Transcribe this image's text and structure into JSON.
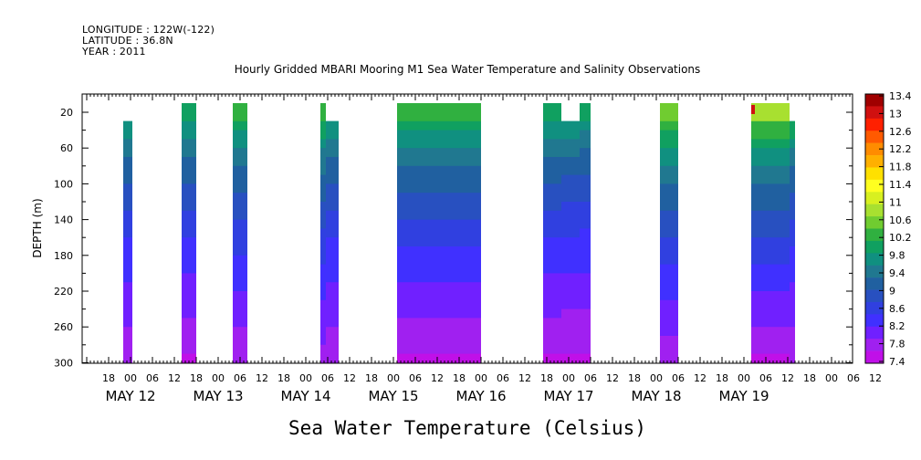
{
  "header": {
    "longitude": "LONGITUDE : 122W(-122)",
    "latitude": "LATITUDE : 36.8N",
    "year": "YEAR : 2011"
  },
  "chart_data": {
    "type": "heatmap",
    "title": "Hourly Gridded MBARI Mooring M1 Sea Water Temperature and Salinity Observations",
    "xlabel": "Sea Water Temperature (Celsius)",
    "ylabel": "DEPTH (m)",
    "x_unit": "hours since 2011-05-11 12:00",
    "xlim": [
      0,
      204
    ],
    "ylim": [
      300,
      0
    ],
    "y_ticks": [
      20,
      60,
      100,
      140,
      180,
      220,
      260,
      300
    ],
    "x_hour_ticks": [
      "18",
      "00",
      "06",
      "12",
      "18",
      "00",
      "06",
      "12",
      "18",
      "00",
      "06",
      "12",
      "18",
      "00",
      "06",
      "12",
      "18",
      "00",
      "06",
      "12",
      "18",
      "00",
      "06",
      "12",
      "18",
      "00",
      "06",
      "12",
      "18",
      "00",
      "06",
      "12",
      "18",
      "00",
      "06",
      "12"
    ],
    "x_day_labels": [
      {
        "label": "MAY 12",
        "hour": 12
      },
      {
        "label": "MAY 13",
        "hour": 36
      },
      {
        "label": "MAY 14",
        "hour": 60
      },
      {
        "label": "MAY 15",
        "hour": 84
      },
      {
        "label": "MAY 16",
        "hour": 108
      },
      {
        "label": "MAY 17",
        "hour": 132
      },
      {
        "label": "MAY 18",
        "hour": 156
      },
      {
        "label": "MAY 19",
        "hour": 180
      }
    ],
    "colorbar": {
      "labels": [
        "13.4",
        "13",
        "12.6",
        "12.2",
        "11.8",
        "11.4",
        "11",
        "10.6",
        "10.2",
        "9.8",
        "9.4",
        "9",
        "8.6",
        "8.2",
        "7.8",
        "7.4"
      ],
      "colors": [
        "#a00000",
        "#d01010",
        "#ff2000",
        "#ff5a00",
        "#ff8c00",
        "#ffb000",
        "#ffe000",
        "#ffff20",
        "#d8f020",
        "#a8e030",
        "#70cc30",
        "#30b040",
        "#10a060",
        "#109080",
        "#207890",
        "#2060a0",
        "#2850c0",
        "#3040e0",
        "#4030ff",
        "#7020ff",
        "#a020f0",
        "#c010e8"
      ],
      "min": 7.4,
      "max": 13.4
    },
    "data_blocks": [
      {
        "start": 10,
        "end": 12.5,
        "top": 40,
        "surface_temp": 10.0,
        "bottom_temp": 7.6
      },
      {
        "start": 26,
        "end": 30,
        "top": 20,
        "surface_temp": 10.4,
        "bottom_temp": 7.5
      },
      {
        "start": 40,
        "end": 44,
        "top": 20,
        "surface_temp": 10.6,
        "bottom_temp": 7.6
      },
      {
        "start": 64,
        "end": 65.5,
        "top": 20,
        "surface_temp": 10.6,
        "bottom_temp": 7.7
      },
      {
        "start": 65.5,
        "end": 69,
        "top": 40,
        "surface_temp": 10.0,
        "bottom_temp": 7.6
      },
      {
        "start": 85,
        "end": 108,
        "top": 20,
        "surface_temp": 10.6,
        "bottom_temp": 7.5
      },
      {
        "start": 125,
        "end": 130,
        "top": 20,
        "surface_temp": 10.4,
        "bottom_temp": 7.5
      },
      {
        "start": 130,
        "end": 135,
        "top": 40,
        "surface_temp": 10.0,
        "bottom_temp": 7.5
      },
      {
        "start": 135,
        "end": 138,
        "top": 20,
        "surface_temp": 10.2,
        "bottom_temp": 7.5
      },
      {
        "start": 157,
        "end": 162,
        "top": 20,
        "surface_temp": 11.0,
        "bottom_temp": 7.6
      },
      {
        "start": 182,
        "end": 192.5,
        "top": 20,
        "surface_temp": 11.1,
        "bottom_temp": 7.5
      },
      {
        "start": 192.5,
        "end": 194,
        "top": 40,
        "surface_temp": 10.2,
        "bottom_temp": 7.6
      }
    ],
    "hot_spot": {
      "hour": 182.5,
      "depth": 22,
      "temp": 13.0
    }
  }
}
